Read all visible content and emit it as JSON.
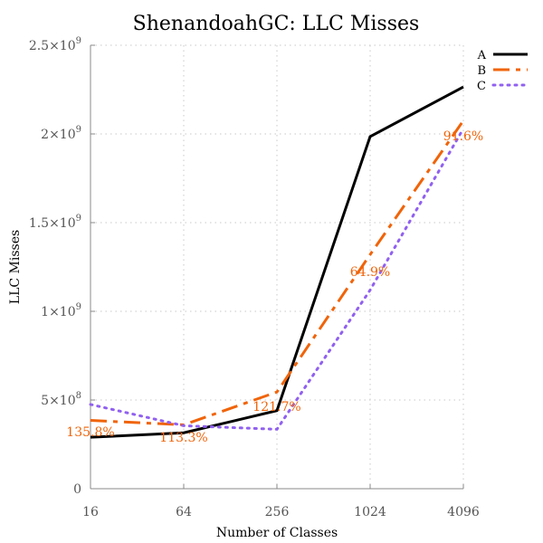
{
  "chart_data": {
    "type": "line",
    "title": "ShenandoahGC: LLC Misses",
    "xlabel": "Number of Classes",
    "ylabel": "LLC Misses",
    "x_scale": "log2",
    "categories": [
      "16",
      "64",
      "256",
      "1024",
      "4096"
    ],
    "ylim": [
      0,
      2500000000
    ],
    "y_ticks": [
      {
        "value": 0,
        "base": "0",
        "exp": ""
      },
      {
        "value": 500000000,
        "base": "5×10",
        "exp": "8"
      },
      {
        "value": 1000000000,
        "base": "1×10",
        "exp": "9"
      },
      {
        "value": 1500000000,
        "base": "1.5×10",
        "exp": "9"
      },
      {
        "value": 2000000000,
        "base": "2×10",
        "exp": "9"
      },
      {
        "value": 2500000000,
        "base": "2.5×10",
        "exp": "9"
      }
    ],
    "grid": true,
    "legend_position": "top-right",
    "series": [
      {
        "name": "A",
        "color": "#000000",
        "style": "solid",
        "values": [
          290000000,
          315000000,
          440000000,
          1985000000,
          2265000000
        ]
      },
      {
        "name": "B",
        "color": "#f0640a",
        "style": "dashdot",
        "values": [
          385000000,
          360000000,
          545000000,
          1320000000,
          2075000000
        ]
      },
      {
        "name": "C",
        "color": "#9060f0",
        "style": "dotted",
        "values": [
          475000000,
          355000000,
          335000000,
          1120000000,
          2030000000
        ]
      }
    ],
    "annotations": [
      {
        "text": "135.8%",
        "x_index": 0,
        "y": 295000000,
        "color": "#f0640a"
      },
      {
        "text": "113.3%",
        "x_index": 1,
        "y": 265000000,
        "color": "#f0640a"
      },
      {
        "text": "121.7%",
        "x_index": 2,
        "y": 440000000,
        "color": "#f0640a"
      },
      {
        "text": "64.9%",
        "x_index": 3,
        "y": 1200000000,
        "color": "#f0640a"
      },
      {
        "text": "91.6%",
        "x_index": 4,
        "y": 1965000000,
        "color": "#f0640a"
      }
    ]
  }
}
